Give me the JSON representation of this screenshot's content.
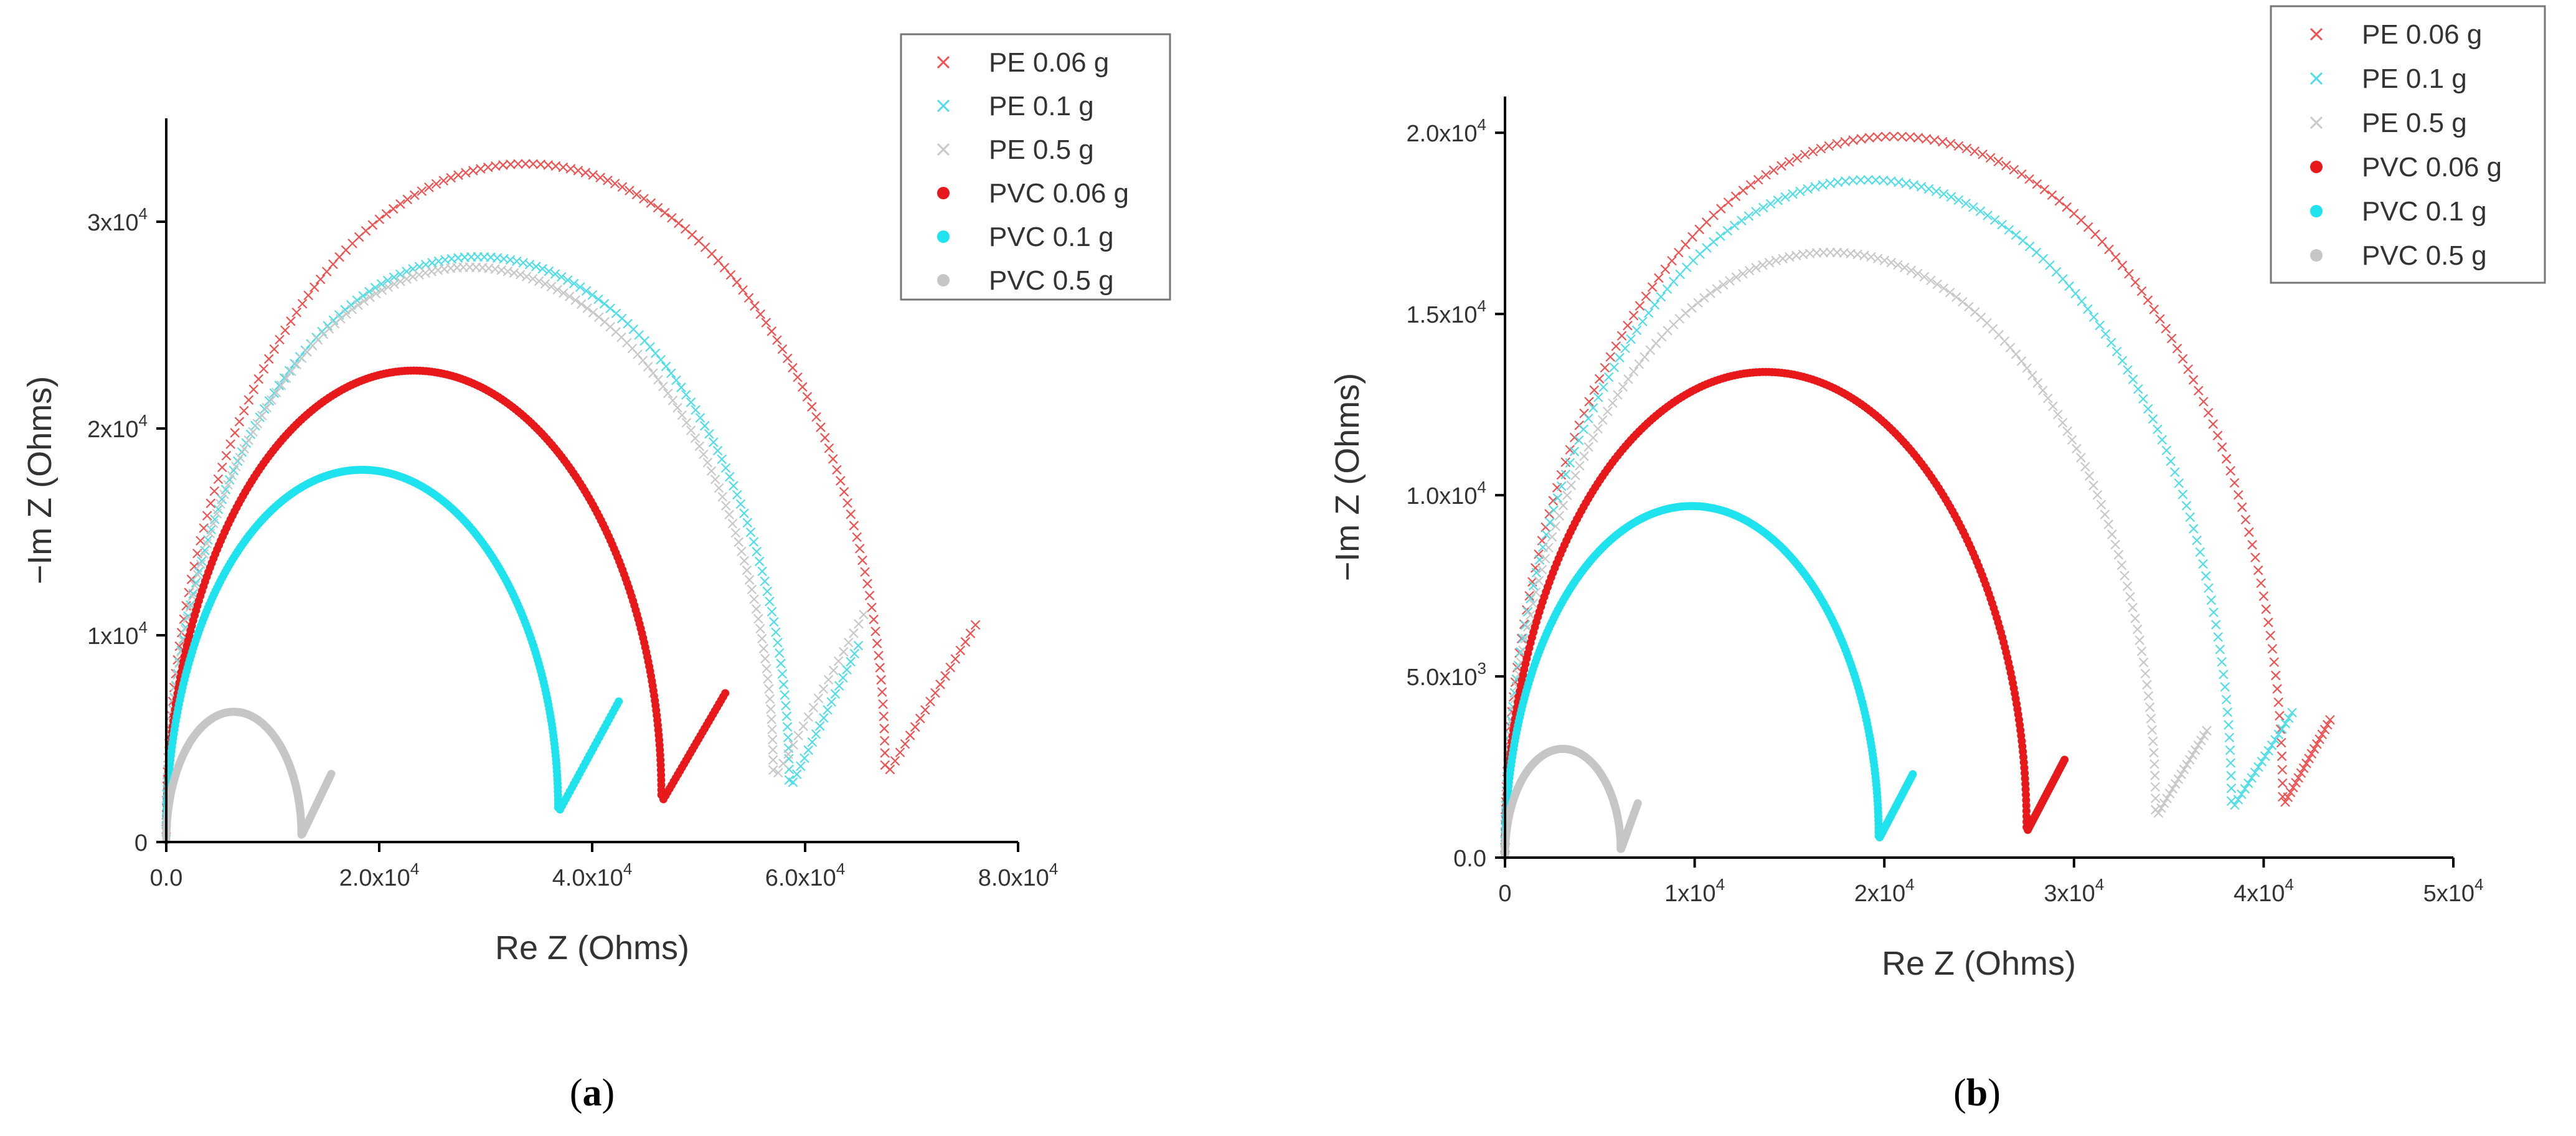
{
  "panels": [
    {
      "id": "a",
      "label": "a",
      "chart_data": {
        "type": "scatter",
        "title": "",
        "xlabel": "Re Z (Ohms)",
        "ylabel": "−Im Z (Ohms)",
        "xlim": [
          0,
          80000
        ],
        "ylim": [
          0,
          35000
        ],
        "grid": false,
        "legend_position": "top-right",
        "x_ticks": [
          {
            "value": 0,
            "label": "0.0"
          },
          {
            "value": 20000,
            "label": "2.0x10^4"
          },
          {
            "value": 40000,
            "label": "4.0x10^4"
          },
          {
            "value": 60000,
            "label": "6.0x10^4"
          },
          {
            "value": 80000,
            "label": "8.0x10^4"
          }
        ],
        "y_ticks": [
          {
            "value": 0,
            "label": "0"
          },
          {
            "value": 10000,
            "label": "1x10^4"
          },
          {
            "value": 20000,
            "label": "2x10^4"
          },
          {
            "value": 30000,
            "label": "3x10^4"
          }
        ],
        "series": [
          {
            "name": "PE 0.06 g",
            "marker": "x",
            "color": "#ef5050",
            "start": 0,
            "min_re": 67500,
            "min_im": 3100,
            "peak_re": 32000,
            "peak_im": 32800,
            "end_re": 76000,
            "end_im": 10500
          },
          {
            "name": "PE 0.1 g",
            "marker": "x",
            "color": "#4fdde8",
            "start": 0,
            "min_re": 58500,
            "min_im": 2500,
            "peak_re": 27500,
            "peak_im": 28300,
            "end_re": 65000,
            "end_im": 9500
          },
          {
            "name": "PE 0.5 g",
            "marker": "x",
            "color": "#c8c8c8",
            "start": 0,
            "min_re": 57000,
            "min_im": 2900,
            "peak_re": 27000,
            "peak_im": 27800,
            "end_re": 65500,
            "end_im": 11000
          },
          {
            "name": "PVC 0.06 g",
            "marker": "dot",
            "color": "#e8191b",
            "start": 0,
            "min_re": 46500,
            "min_im": 1900,
            "peak_re": 23000,
            "peak_im": 22800,
            "end_re": 52500,
            "end_im": 7200
          },
          {
            "name": "PVC 0.1 g",
            "marker": "dot",
            "color": "#1ee3ee",
            "start": 0,
            "min_re": 36800,
            "min_im": 1400,
            "peak_re": 18000,
            "peak_im": 18000,
            "end_re": 42500,
            "end_im": 6800
          },
          {
            "name": "PVC 0.5 g",
            "marker": "dot",
            "color": "#c6c6c6",
            "start": 0,
            "min_re": 12700,
            "min_im": 300,
            "peak_re": 6400,
            "peak_im": 6300,
            "end_re": 15500,
            "end_im": 3300
          }
        ]
      }
    },
    {
      "id": "b",
      "label": "b",
      "chart_data": {
        "type": "scatter",
        "title": "",
        "xlabel": "Re Z (Ohms)",
        "ylabel": "−Im Z (Ohms)",
        "xlim": [
          0,
          50000
        ],
        "ylim": [
          0,
          21000
        ],
        "grid": false,
        "legend_position": "top-right",
        "x_ticks": [
          {
            "value": 0,
            "label": "0"
          },
          {
            "value": 10000,
            "label": "1x10^4"
          },
          {
            "value": 20000,
            "label": "2x10^4"
          },
          {
            "value": 30000,
            "label": "3x10^4"
          },
          {
            "value": 40000,
            "label": "4x10^4"
          },
          {
            "value": 50000,
            "label": "5x10^4"
          }
        ],
        "y_ticks": [
          {
            "value": 0,
            "label": "0.0"
          },
          {
            "value": 5000,
            "label": "5.0x10^3"
          },
          {
            "value": 10000,
            "label": "1.0x10^4"
          },
          {
            "value": 15000,
            "label": "1.5x10^4"
          },
          {
            "value": 20000,
            "label": "2.0x10^4"
          }
        ],
        "series": [
          {
            "name": "PE 0.06 g",
            "marker": "x",
            "color": "#ef5050",
            "start": 0,
            "min_re": 41000,
            "min_im": 1400,
            "peak_re": 20000,
            "peak_im": 19900,
            "end_re": 43500,
            "end_im": 3800
          },
          {
            "name": "PE 0.1 g",
            "marker": "x",
            "color": "#4fdde8",
            "start": 0,
            "min_re": 38300,
            "min_im": 1300,
            "peak_re": 19200,
            "peak_im": 18700,
            "end_re": 41500,
            "end_im": 4000
          },
          {
            "name": "PE 0.5 g",
            "marker": "x",
            "color": "#c8c8c8",
            "start": 0,
            "min_re": 34300,
            "min_im": 1100,
            "peak_re": 17000,
            "peak_im": 16700,
            "end_re": 37000,
            "end_im": 3500
          },
          {
            "name": "PVC 0.06 g",
            "marker": "dot",
            "color": "#e8191b",
            "start": 0,
            "min_re": 27500,
            "min_im": 700,
            "peak_re": 13500,
            "peak_im": 13400,
            "end_re": 29500,
            "end_im": 2700
          },
          {
            "name": "PVC 0.1 g",
            "marker": "dot",
            "color": "#1ee3ee",
            "start": 0,
            "min_re": 19700,
            "min_im": 500,
            "peak_re": 9700,
            "peak_im": 9700,
            "end_re": 21500,
            "end_im": 2300
          },
          {
            "name": "PVC 0.5 g",
            "marker": "dot",
            "color": "#c6c6c6",
            "start": 0,
            "min_re": 6100,
            "min_im": 200,
            "peak_re": 3100,
            "peak_im": 3000,
            "end_re": 7000,
            "end_im": 1500
          }
        ]
      }
    }
  ]
}
